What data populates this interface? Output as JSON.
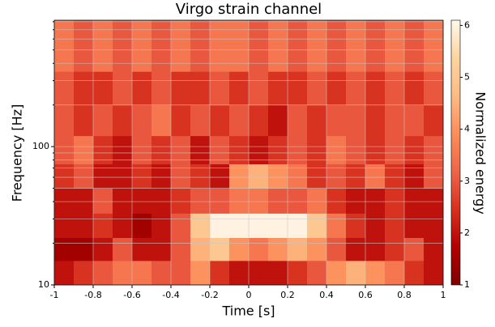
{
  "chart_data": {
    "type": "heatmap",
    "title": "Virgo strain channel",
    "xlabel": "Time [s]",
    "ylabel": "Frequency [Hz]",
    "colorbar_label": "Normalized energy",
    "xbins": [
      -1,
      -0.9,
      -0.8,
      -0.7,
      -0.6,
      -0.5,
      -0.4,
      -0.3,
      -0.2,
      -0.1,
      0,
      0.1,
      0.2,
      0.3,
      0.4,
      0.5,
      0.6,
      0.7,
      0.8,
      0.9,
      1
    ],
    "ybins": [
      10,
      15,
      22,
      33,
      50,
      75,
      120,
      200,
      350,
      820
    ],
    "z": [
      [
        2,
        2.5,
        3,
        3.5,
        3.5,
        3,
        3,
        4,
        2.5,
        2,
        2,
        2,
        2.5,
        3,
        4,
        4.5,
        4,
        3.5,
        2.5,
        2
      ],
      [
        1.5,
        1.5,
        2,
        3,
        2,
        2,
        3,
        4.5,
        5,
        4,
        3.5,
        4,
        4.5,
        4,
        3,
        2,
        2,
        2.5,
        3,
        2
      ],
      [
        2,
        2,
        2.5,
        2,
        1.5,
        2,
        3,
        5,
        6,
        6,
        6,
        6,
        6,
        5,
        3.5,
        2.5,
        2,
        2.5,
        2,
        2
      ],
      [
        2,
        2,
        3,
        2,
        2,
        2,
        2.5,
        3,
        3,
        3.5,
        3.5,
        3,
        3,
        3.5,
        2.5,
        2,
        2,
        2.5,
        2,
        2
      ],
      [
        2.5,
        3,
        2,
        2,
        2.5,
        2,
        3,
        2.5,
        2,
        4,
        4.5,
        4,
        3.5,
        2.5,
        3,
        2.5,
        3.5,
        2.5,
        2,
        3
      ],
      [
        3,
        3.5,
        2.5,
        2,
        3,
        2.5,
        3,
        2,
        3,
        2.5,
        2,
        2.5,
        3,
        2.5,
        3.5,
        3,
        2.5,
        3,
        2.5,
        3
      ],
      [
        3,
        2.5,
        3,
        2.5,
        3,
        3.5,
        2.5,
        3,
        2.5,
        3,
        2.5,
        2,
        3,
        2.5,
        3,
        3,
        2.5,
        3,
        3,
        2.5
      ],
      [
        3,
        2.5,
        2.5,
        3,
        2.5,
        3,
        2.5,
        2.5,
        3,
        2.5,
        3,
        2.5,
        2.5,
        3,
        2.5,
        3,
        2.5,
        3,
        2.5,
        3
      ],
      [
        3.5,
        3,
        3.5,
        3,
        3.5,
        3,
        3.5,
        3,
        3.5,
        3.5,
        3,
        3.5,
        3,
        3.5,
        3,
        3.5,
        3,
        3.5,
        3,
        3.5
      ]
    ],
    "xlim": [
      -1,
      1
    ],
    "xticks": [
      -1,
      -0.8,
      -0.6,
      -0.4,
      -0.2,
      0,
      0.2,
      0.4,
      0.6,
      0.8,
      1
    ],
    "ylim": [
      10,
      820
    ],
    "ylog": true,
    "yticks": [
      10,
      100
    ],
    "yminorticks": [
      20,
      30,
      40,
      50,
      60,
      70,
      80,
      90,
      200,
      300,
      400,
      500,
      600,
      700,
      800
    ],
    "clim": [
      1,
      6.1
    ],
    "cticks": [
      1,
      2,
      3,
      4,
      5,
      6
    ],
    "colorscale": [
      "#7f0000",
      "#b30000",
      "#d7301f",
      "#ef6548",
      "#fc8d59",
      "#fdbb84",
      "#fdd49e",
      "#fff7ec"
    ],
    "grid": true
  }
}
